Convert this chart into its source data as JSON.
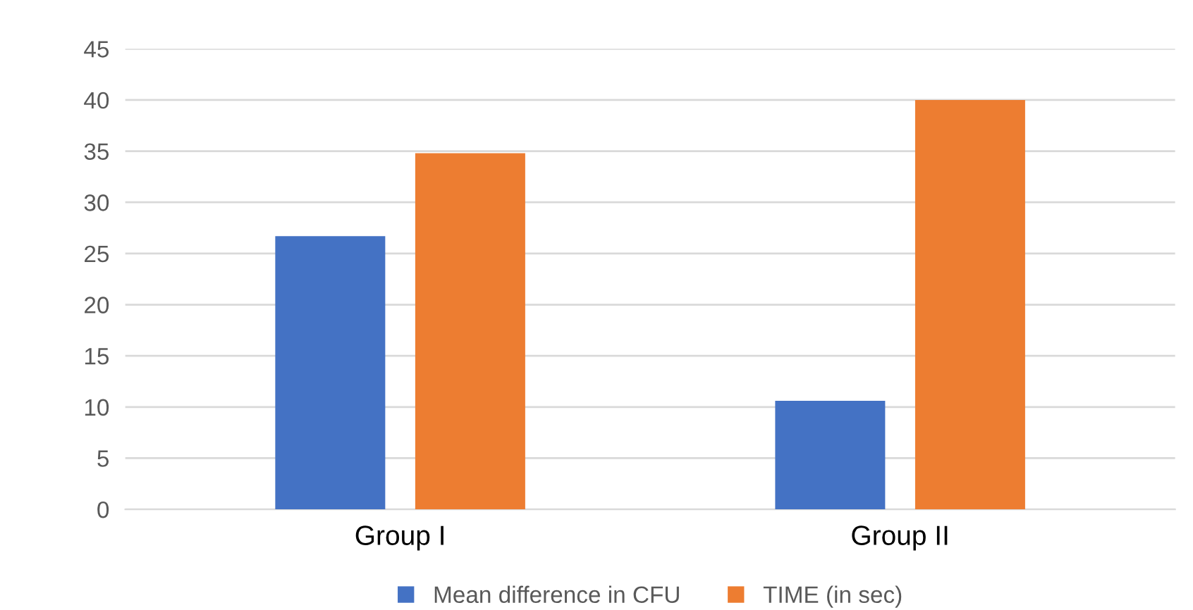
{
  "chart_data": {
    "type": "bar",
    "categories": [
      "Group I",
      "Group II"
    ],
    "series": [
      {
        "name": "Mean difference in CFU",
        "color": "#4472c4",
        "values": [
          26.7,
          10.6
        ]
      },
      {
        "name": "TIME (in sec)",
        "color": "#ed7d31",
        "values": [
          34.8,
          40
        ]
      }
    ],
    "ylim": [
      0,
      45
    ],
    "yticks": [
      0,
      5,
      10,
      15,
      20,
      25,
      30,
      35,
      40,
      45
    ],
    "grid": "y",
    "legend": "bottom"
  }
}
